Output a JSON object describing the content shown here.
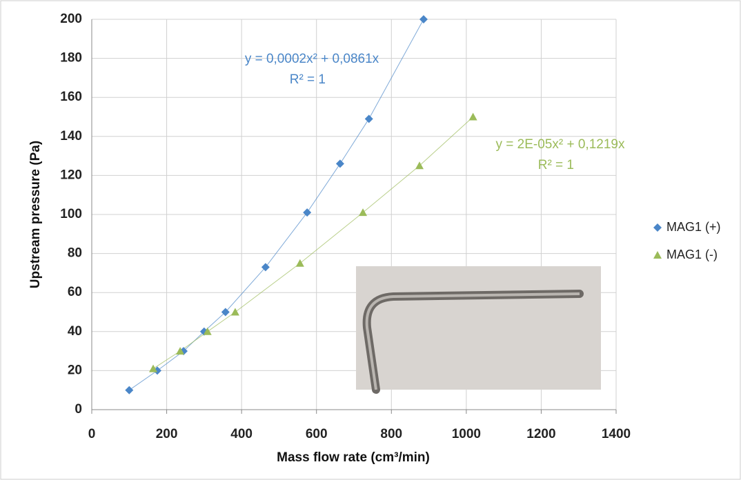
{
  "chart_data": {
    "type": "scatter",
    "x_label": "Mass flow rate (cm³/min)",
    "y_label": "Upstream pressure (Pa)",
    "xlim": [
      0,
      1400
    ],
    "xticks": [
      0,
      200,
      400,
      600,
      800,
      1000,
      1200,
      1400
    ],
    "ylim": [
      0,
      200
    ],
    "yticks": [
      0,
      20,
      40,
      60,
      80,
      100,
      120,
      140,
      160,
      180,
      200
    ],
    "grid": true,
    "legend": "right",
    "series": [
      {
        "name": "MAG1 (+)",
        "color": "#4a86c8",
        "marker": "diamond",
        "x": [
          100,
          175,
          245,
          300,
          357,
          464,
          575,
          663,
          740,
          886
        ],
        "values": [
          10,
          20,
          30,
          40,
          50,
          73,
          101,
          126,
          149,
          200
        ],
        "trendline": [
          "y = 0,0002x² + 0,0861x",
          "R² = 1"
        ]
      },
      {
        "name": "MAG1 (-)",
        "color": "#9bbb59",
        "marker": "triangle",
        "x": [
          164,
          236,
          309,
          383,
          556,
          724,
          875,
          1018
        ],
        "values": [
          21,
          30,
          40,
          50,
          75,
          101,
          125,
          150
        ],
        "trendline": [
          "y = 2E-05x² + 0,1219x",
          "R² = 1"
        ]
      }
    ]
  }
}
